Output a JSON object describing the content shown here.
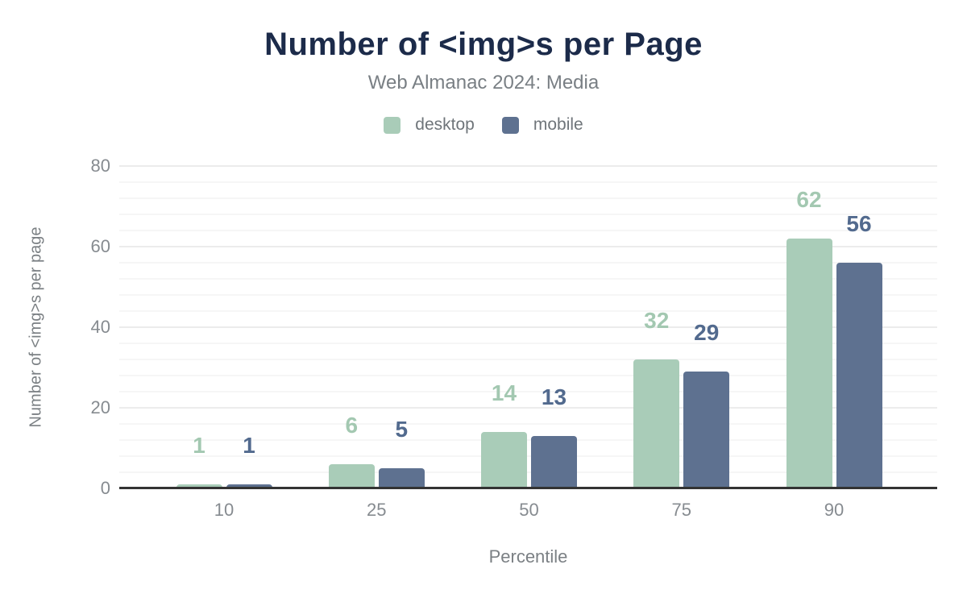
{
  "chart_data": {
    "type": "bar",
    "title": "Number of <img>s per Page",
    "subtitle": "Web Almanac 2024: Media",
    "xlabel": "Percentile",
    "ylabel": "Number of <img>s per page",
    "categories": [
      "10",
      "25",
      "50",
      "75",
      "90"
    ],
    "series": [
      {
        "name": "desktop",
        "values": [
          1,
          6,
          14,
          32,
          62
        ],
        "color": "#a9ccb8",
        "label_color": "#a3c8b1"
      },
      {
        "name": "mobile",
        "values": [
          1,
          5,
          13,
          29,
          56
        ],
        "color": "#5e7190",
        "label_color": "#526a8e"
      }
    ],
    "ylim": [
      0,
      80
    ],
    "yticks": [
      0,
      20,
      40,
      60,
      80
    ],
    "minor_grid_step": 4,
    "major_grid_step": 20,
    "legend_position": "top",
    "grid": "horizontal",
    "colors": {
      "title": "#1c2b4a",
      "subtitle_gray": "#797f84",
      "tick_gray": "#868b90",
      "axis_line": "#333333",
      "minor_gridline": "#f6f6f6",
      "major_gridline": "#ececec"
    }
  }
}
